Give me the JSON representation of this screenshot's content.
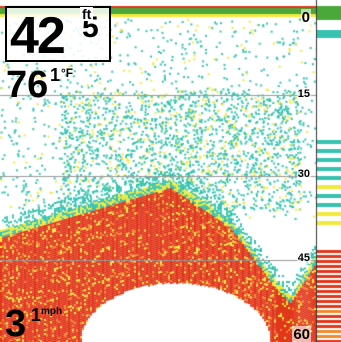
{
  "depth": {
    "value": "42",
    "decimal": "5",
    "unit": "ft"
  },
  "water_temp": {
    "value": "76",
    "decimal": "1",
    "unit": "°F"
  },
  "speed": {
    "value": "3",
    "decimal": "1",
    "unit": "mph"
  },
  "depth_scale": {
    "labels": [
      "0",
      "15",
      "30",
      "45",
      "60"
    ],
    "max": 60
  },
  "colors": {
    "background": "#ffffff",
    "weak_return": "#35c3b0",
    "medium_return": "#f2ea3a",
    "strong_return": "#e2361c",
    "surface_band": "#4aa83a"
  }
}
